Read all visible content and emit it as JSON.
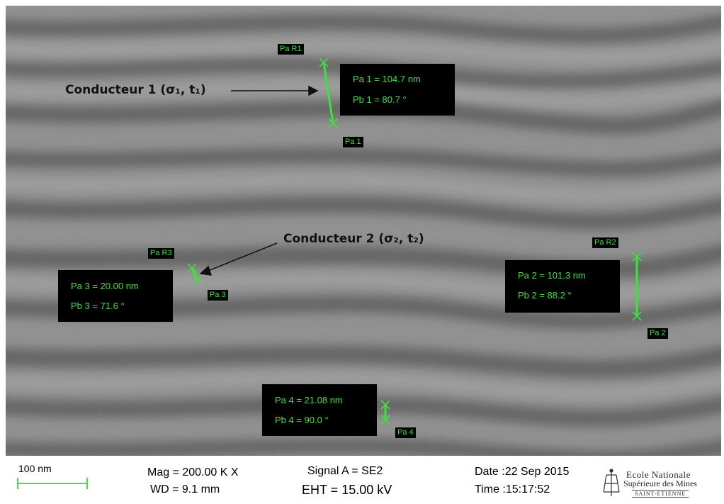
{
  "annotations": {
    "conductor1": "Conducteur 1 (σ₁, t₁)",
    "conductor2": "Conducteur 2 (σ₂, t₂)"
  },
  "measurements": [
    {
      "ref_label": "Pa R1",
      "end_label": "Pa 1",
      "line1": "Pa 1 = 104.7 nm",
      "line2": "Pb 1 =  80.7 °"
    },
    {
      "ref_label": "Pa R2",
      "end_label": "Pa 2",
      "line1": "Pa 2 = 101.3 nm",
      "line2": "Pb 2 =  88.2 °"
    },
    {
      "ref_label": "Pa R3",
      "end_label": "Pa 3",
      "line1": "Pa 3 = 20.00 nm",
      "line2": "Pb 3 =  71.6 °"
    },
    {
      "end_label": "Pa 4",
      "line1": "Pa 4 = 21.08 nm",
      "line2": "Pb 4 =  90.0 °"
    }
  ],
  "footer": {
    "scale_bar": "100 nm",
    "mag": "Mag =  200.00 K X",
    "wd": "WD =  9.1 mm",
    "signal": "Signal A = SE2",
    "eht": "EHT = 15.00 kV",
    "date": "Date :22 Sep 2015",
    "time": "Time :15:17:52",
    "institution_line1": "Ecole Nationale",
    "institution_line2": "Supérieure des Mines",
    "institution_line3": "SAINT-ETIENNE"
  },
  "colors": {
    "measure_green": "#3fe03f",
    "label_bg": "#000000"
  }
}
